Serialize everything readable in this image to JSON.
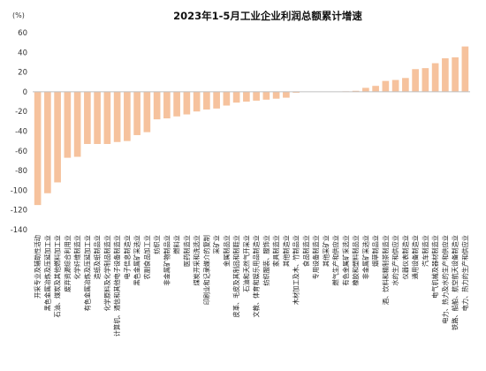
{
  "chart_data": {
    "type": "bar",
    "title": "2023年1-5月工业企业利润总额累计增速",
    "unit": "(%)",
    "ylim": [
      -140,
      60
    ],
    "yticks": [
      60,
      40,
      20,
      0,
      -20,
      -40,
      -60,
      -80,
      -100,
      -120,
      -140
    ],
    "grid": false,
    "bar_color": "#F6C29D",
    "categories": [
      "开采专业及辅助性活动",
      "黑色金属冶炼及压延加工业",
      "石油、煤炭及其他燃料加工业",
      "废弃资源综合利用业",
      "化学纤维制造业",
      "有色金属冶炼及压延加工业",
      "造纸及纸制品业",
      "化学原料及化学制品制造业",
      "计算机、通信和其他电子设备制造业",
      "电子信息制造业",
      "黑色金属矿采选业",
      "农副食品加工业",
      "纺织业",
      "非金属矿物制品业",
      "燃料业",
      "医药制造业",
      "煤炭开采和洗选业",
      "印刷业和记录媒介的复制",
      "采矿业",
      "金属制品业",
      "皮革、毛皮及其制品和制鞋业",
      "石油和天然气开采业",
      "文教、体育和娱乐用品制造业",
      "纺织服装、服饰业",
      "家具制造业",
      "其他制造业",
      "木材加工及木、竹制品业",
      "食品制造业",
      "专用设备制造业",
      "其他采矿业",
      "燃气生产和供应业",
      "有色金属矿采选业",
      "橡胶和塑料制品业",
      "非金属矿采选业",
      "烟草制品业",
      "酒、饮料和精制茶制造业",
      "水的生产和供应业",
      "仪器仪表制造业",
      "通用设备制造业",
      "汽车制造业",
      "电气机械及器材制造业",
      "电力、热力及水的生产和供应业",
      "铁路、船舶、航空航天设备制造业",
      "电力、热力的生产和供应业"
    ],
    "values": [
      -115,
      -103,
      -92,
      -67,
      -66,
      -53,
      -53,
      -53,
      -51,
      -50,
      -44,
      -41,
      -28,
      -27,
      -25,
      -23,
      -20,
      -18,
      -17,
      -14,
      -11,
      -10,
      -9,
      -8,
      -7,
      -6,
      -1,
      0,
      0,
      0,
      0,
      0.5,
      1,
      4,
      6,
      11,
      12,
      14,
      23,
      24,
      29,
      34,
      35,
      46
    ]
  }
}
